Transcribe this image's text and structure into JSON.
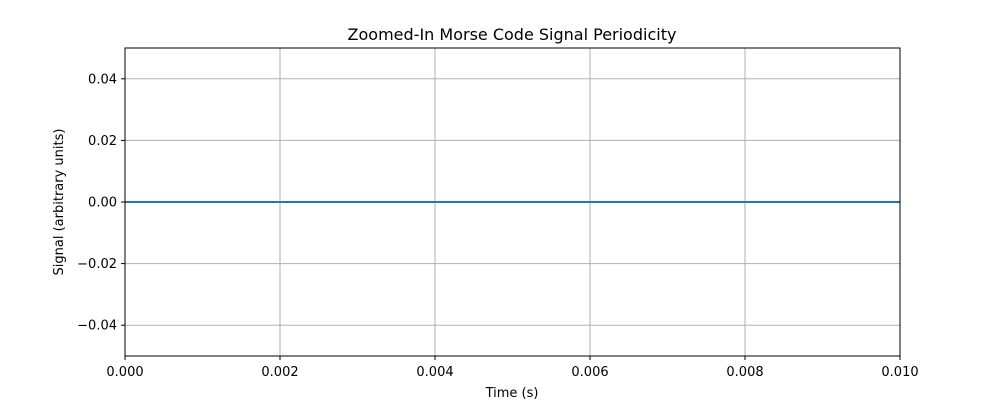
{
  "chart_data": {
    "type": "line",
    "title": "Zoomed-In Morse Code Signal Periodicity",
    "xlabel": "Time (s)",
    "ylabel": "Signal (arbitrary units)",
    "xlim": [
      0.0,
      0.01
    ],
    "ylim": [
      -0.05,
      0.05
    ],
    "x_ticks": [
      {
        "value": 0.0,
        "label": "0.000"
      },
      {
        "value": 0.002,
        "label": "0.002"
      },
      {
        "value": 0.004,
        "label": "0.004"
      },
      {
        "value": 0.006,
        "label": "0.006"
      },
      {
        "value": 0.008,
        "label": "0.008"
      },
      {
        "value": 0.01,
        "label": "0.010"
      }
    ],
    "y_ticks": [
      {
        "value": 0.04,
        "label": "0.04"
      },
      {
        "value": 0.02,
        "label": "0.02"
      },
      {
        "value": 0.0,
        "label": "0.00"
      },
      {
        "value": -0.02,
        "label": "−0.02"
      },
      {
        "value": -0.04,
        "label": "−0.04"
      }
    ],
    "grid": true,
    "series": [
      {
        "color": "#1f77b4",
        "x": [
          0.0,
          0.01
        ],
        "y": [
          0.0,
          0.0
        ]
      }
    ]
  }
}
